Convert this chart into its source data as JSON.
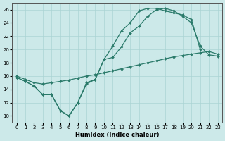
{
  "xlabel": "Humidex (Indice chaleur)",
  "xlim": [
    -0.5,
    23.5
  ],
  "ylim": [
    9,
    27
  ],
  "yticks": [
    10,
    12,
    14,
    16,
    18,
    20,
    22,
    24,
    26
  ],
  "xticks": [
    0,
    1,
    2,
    3,
    4,
    5,
    6,
    7,
    8,
    9,
    10,
    11,
    12,
    13,
    14,
    15,
    16,
    17,
    18,
    19,
    20,
    21,
    22,
    23
  ],
  "bg_color": "#cce9e9",
  "grid_color": "#aad4d4",
  "line_color": "#2a7a6a",
  "line1_x": [
    0,
    1,
    2,
    3,
    4,
    5,
    6,
    7,
    8,
    9,
    10,
    11,
    12,
    13,
    14,
    15,
    16,
    17,
    18,
    19,
    20,
    21,
    22,
    23
  ],
  "line1_y": [
    15.8,
    15.2,
    14.5,
    13.2,
    13.2,
    10.8,
    10.0,
    12.0,
    15.0,
    15.5,
    18.5,
    18.8,
    20.4,
    22.5,
    23.5,
    25.0,
    26.0,
    26.2,
    25.8,
    25.0,
    24.0,
    20.5,
    19.2,
    19.0
  ],
  "line2_x": [
    0,
    1,
    2,
    3,
    4,
    5,
    6,
    7,
    8,
    9,
    10,
    11,
    12,
    13,
    14,
    15,
    16,
    17,
    18,
    19,
    20,
    21
  ],
  "line2_y": [
    15.8,
    15.2,
    14.5,
    13.2,
    13.2,
    10.8,
    10.0,
    12.0,
    14.8,
    15.5,
    18.5,
    20.5,
    22.8,
    24.0,
    25.8,
    26.2,
    26.2,
    25.8,
    25.5,
    25.2,
    24.5,
    20.0
  ],
  "line3_x": [
    0,
    1,
    2,
    3,
    4,
    5,
    6,
    7,
    8,
    9,
    10,
    11,
    12,
    13,
    14,
    15,
    16,
    17,
    18,
    19,
    20,
    21,
    22,
    23
  ],
  "line3_y": [
    16.0,
    15.5,
    15.0,
    14.8,
    15.0,
    15.2,
    15.4,
    15.7,
    16.0,
    16.2,
    16.5,
    16.8,
    17.1,
    17.4,
    17.7,
    18.0,
    18.3,
    18.6,
    18.9,
    19.1,
    19.3,
    19.5,
    19.7,
    19.3
  ]
}
